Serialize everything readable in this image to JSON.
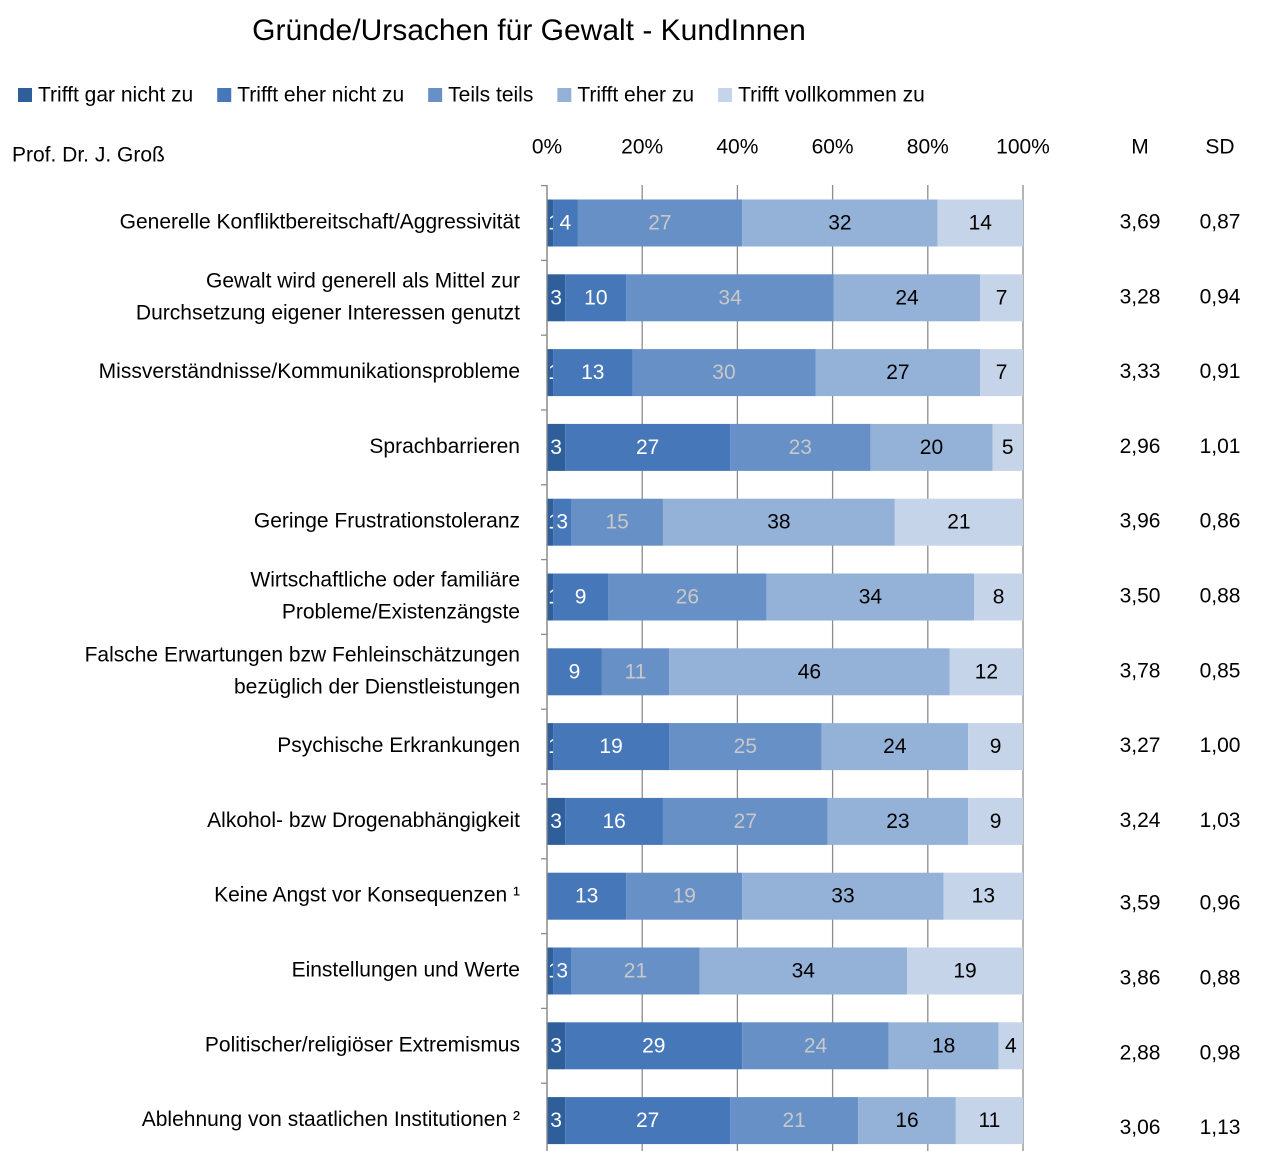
{
  "chart_data": {
    "type": "stacked-bar-100",
    "title": "Gründe/Ursachen für Gewalt - KundInnen",
    "subtitle": "Prof. Dr. J. Groß",
    "categories": [
      [
        "Generelle Konfliktbereitschaft/Aggressivität"
      ],
      [
        "Gewalt wird generell als Mittel zur",
        "Durchsetzung eigener Interessen genutzt"
      ],
      [
        "Missverständnisse/Kommunikationsprobleme"
      ],
      [
        "Sprachbarrieren"
      ],
      [
        "Geringe Frustrationstoleranz"
      ],
      [
        "Wirtschaftliche oder familiäre",
        "Probleme/Existenzängste"
      ],
      [
        "Falsche Erwartungen bzw Fehleinschätzungen",
        "bezüglich der Dienstleistungen"
      ],
      [
        "Psychische Erkrankungen"
      ],
      [
        "Alkohol- bzw Drogenabhängigkeit"
      ],
      [
        "Keine Angst vor Konsequenzen ¹"
      ],
      [
        "Einstellungen und Werte"
      ],
      [
        "Politischer/religiöser Extremismus"
      ],
      [
        "Ablehnung von staatlichen Institutionen ²"
      ]
    ],
    "series": [
      {
        "name": "Trifft gar nicht zu",
        "color": "#2e5f9a",
        "label_color": "#ffffff",
        "values": [
          1,
          3,
          1,
          3,
          1,
          1,
          0,
          1,
          3,
          0,
          1,
          3,
          3
        ]
      },
      {
        "name": "Trifft eher nicht zu",
        "color": "#4677b8",
        "label_color": "#ffffff",
        "values": [
          4,
          10,
          13,
          27,
          3,
          9,
          9,
          19,
          16,
          13,
          3,
          29,
          27
        ]
      },
      {
        "name": "Teils teils",
        "color": "#6690c6",
        "label_color": "#c8c8c8",
        "values": [
          27,
          34,
          30,
          23,
          15,
          26,
          11,
          25,
          27,
          19,
          21,
          24,
          21
        ]
      },
      {
        "name": "Trifft eher zu",
        "color": "#94b2d8",
        "label_color": "#000000",
        "values": [
          32,
          24,
          27,
          20,
          38,
          34,
          46,
          24,
          23,
          33,
          34,
          18,
          16
        ]
      },
      {
        "name": "Trifft vollkommen zu",
        "color": "#c6d4e9",
        "label_color": "#000000",
        "values": [
          14,
          7,
          7,
          5,
          21,
          8,
          12,
          9,
          9,
          13,
          19,
          4,
          11
        ]
      }
    ],
    "xlim": [
      0,
      100
    ],
    "xticks": [
      {
        "value": 0,
        "label": "0%"
      },
      {
        "value": 20,
        "label": "20%"
      },
      {
        "value": 40,
        "label": "40%"
      },
      {
        "value": 60,
        "label": "60%"
      },
      {
        "value": 80,
        "label": "80%"
      },
      {
        "value": 100,
        "label": "100%"
      }
    ],
    "grid": true,
    "legend": "top",
    "stats": [
      {
        "header": "M",
        "values": [
          "3,69",
          "3,28",
          "3,33",
          "2,96",
          "3,96",
          "3,50",
          "3,78",
          "3,27",
          "3,24",
          "3,59",
          "3,86",
          "2,88",
          "3,06"
        ]
      },
      {
        "header": "SD",
        "values": [
          "0,87",
          "0,94",
          "0,91",
          "1,01",
          "0,86",
          "0,88",
          "0,85",
          "1,00",
          "1,03",
          "0,96",
          "0,88",
          "0,98",
          "1,13"
        ]
      }
    ]
  }
}
